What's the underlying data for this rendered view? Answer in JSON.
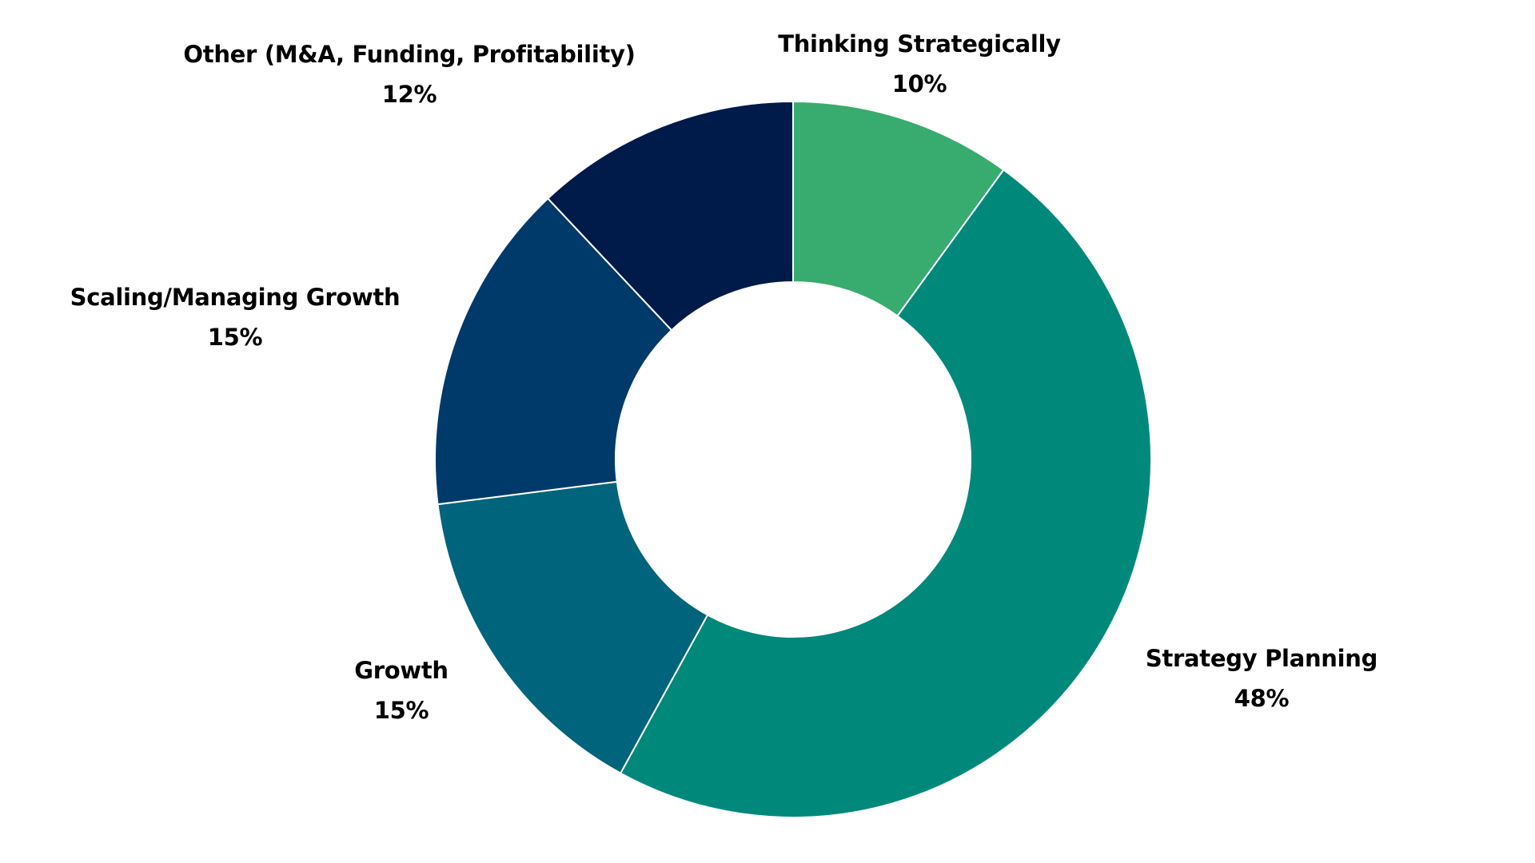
{
  "chart_data": {
    "type": "pie",
    "donut": true,
    "slices": [
      {
        "label": "Thinking Strategically",
        "value": 10,
        "value_label": "10%",
        "color": "#38AC6F"
      },
      {
        "label": "Strategy Planning",
        "value": 48,
        "value_label": "48%",
        "color": "#00897B"
      },
      {
        "label": "Growth",
        "value": 15,
        "value_label": "15%",
        "color": "#00647C"
      },
      {
        "label": "Scaling/Managing Growth",
        "value": 15,
        "value_label": "15%",
        "color": "#003A6B"
      },
      {
        "label": "Other (M&A, Funding, Profitability)",
        "value": 12,
        "value_label": "12%",
        "color": "#001A4A"
      }
    ],
    "start_angle": "12 o'clock",
    "direction": "clockwise",
    "legend": "none"
  }
}
